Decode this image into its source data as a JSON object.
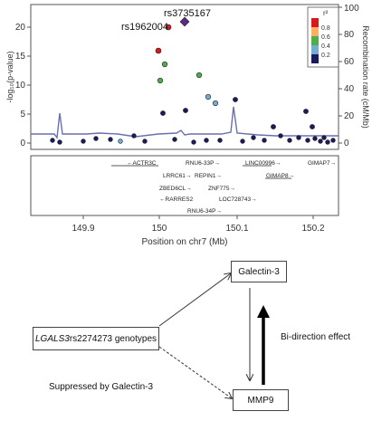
{
  "locus_plot": {
    "y_left_label": "-log₁₀(p-value)",
    "y_right_label": "Recombination rate (cM/Mb)",
    "x_label": "Position on chr7 (Mb)",
    "x_ticks": [
      "149.9",
      "150",
      "150.1",
      "150.2"
    ],
    "y_left_ticks": [
      "0",
      "5",
      "10",
      "15",
      "20"
    ],
    "y_right_ticks": [
      "0",
      "20",
      "40",
      "60",
      "80",
      "100"
    ],
    "lead_snp": "rs3735167",
    "secondary_snp": "rs1962004",
    "legend_title": "r²",
    "legend_ticks": [
      "0.8",
      "0.6",
      "0.4",
      "0.2"
    ],
    "legend_colors": [
      "#d7191c",
      "#fdae61",
      "#4daf4a",
      "#74add1",
      "#1a1a5e"
    ],
    "genes": [
      {
        "name": "ACTR3C",
        "dir": "←"
      },
      {
        "name": "RNU6-33P",
        "dir": "→"
      },
      {
        "name": "LINC00996",
        "dir": "→"
      },
      {
        "name": "GIMAP7",
        "dir": "→"
      },
      {
        "name": "LRRC61",
        "dir": "→"
      },
      {
        "name": "REPIN1",
        "dir": "→"
      },
      {
        "name": "GIMAP8",
        "dir": "→"
      },
      {
        "name": "ZBED6CL",
        "dir": "→"
      },
      {
        "name": "ZNF775",
        "dir": "→"
      },
      {
        "name": "RARRES2",
        "dir": "←"
      },
      {
        "name": "LOC728743",
        "dir": "→"
      },
      {
        "name": "RNU6-34P",
        "dir": "→"
      }
    ]
  },
  "diagram": {
    "galectin": "Galectin-3",
    "mmp9": "MMP9",
    "genotype_gene": "LGALS3",
    "genotype_rest": " rs2274273 genotypes",
    "bi_direction": "Bi-direction effect",
    "suppressed": "Suppressed by Galectin-3"
  }
}
